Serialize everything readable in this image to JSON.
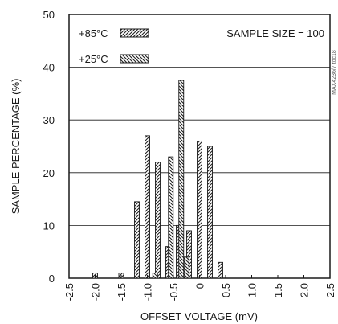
{
  "chart_data": {
    "type": "bar",
    "title": "",
    "xlabel": "OFFSET VOLTAGE (mV)",
    "ylabel": "SAMPLE PERCENTAGE (%)",
    "xlim": [
      -2.5,
      2.5
    ],
    "ylim": [
      0,
      50
    ],
    "x_ticks": [
      "-2.5",
      "-2.0",
      "-1.5",
      "-1.0",
      "-0.5",
      "0",
      "0.5",
      "1.0",
      "1.5",
      "2.0",
      "2.5"
    ],
    "y_ticks": [
      "0",
      "10",
      "20",
      "30",
      "40",
      "50"
    ],
    "grid": "horizontal",
    "annotation": "SAMPLE SIZE = 100",
    "side_label": "MAX4236/7 toc18",
    "series": [
      {
        "name": "+85°C",
        "pattern": "forward-hatch",
        "points": [
          {
            "x": -2.0,
            "y": 1
          },
          {
            "x": -1.5,
            "y": 1
          },
          {
            "x": -1.2,
            "y": 14.5
          },
          {
            "x": -1.0,
            "y": 27
          },
          {
            "x": -0.8,
            "y": 22
          },
          {
            "x": -0.6,
            "y": 6
          },
          {
            "x": -0.4,
            "y": 10
          },
          {
            "x": -0.2,
            "y": 9
          },
          {
            "x": 0.0,
            "y": 26
          },
          {
            "x": 0.2,
            "y": 25
          },
          {
            "x": 0.4,
            "y": 3
          }
        ]
      },
      {
        "name": "+25°C",
        "pattern": "back-hatch",
        "points": [
          {
            "x": -0.85,
            "y": 1
          },
          {
            "x": -0.55,
            "y": 23
          },
          {
            "x": -0.35,
            "y": 37.5
          },
          {
            "x": -0.25,
            "y": 4
          }
        ]
      }
    ]
  }
}
